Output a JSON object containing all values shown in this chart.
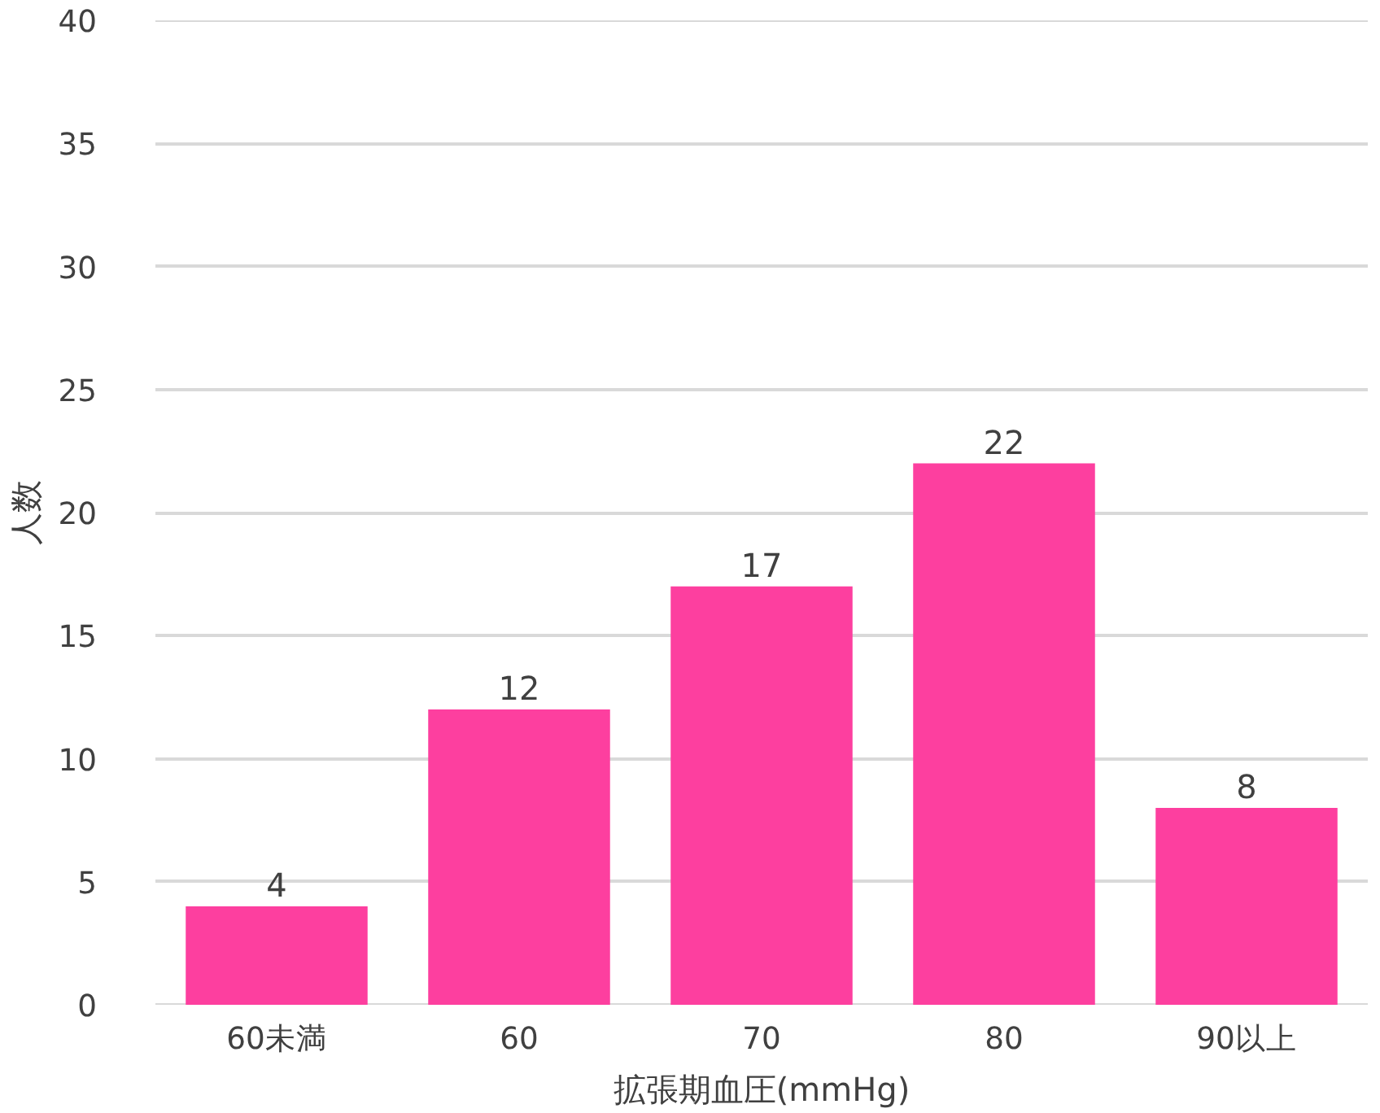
{
  "chart_data": {
    "type": "bar",
    "xlabel": "拡張期血圧(mmHg)",
    "ylabel": "人数",
    "categories": [
      "60未満",
      "60",
      "70",
      "80",
      "90以上"
    ],
    "values": [
      4,
      12,
      17,
      22,
      8
    ],
    "color": "#fd3f9f",
    "ylim": [
      0,
      40
    ],
    "yticks": [
      0,
      5,
      10,
      15,
      20,
      25,
      30,
      35,
      40
    ],
    "grid": "y",
    "data_labels": true
  }
}
